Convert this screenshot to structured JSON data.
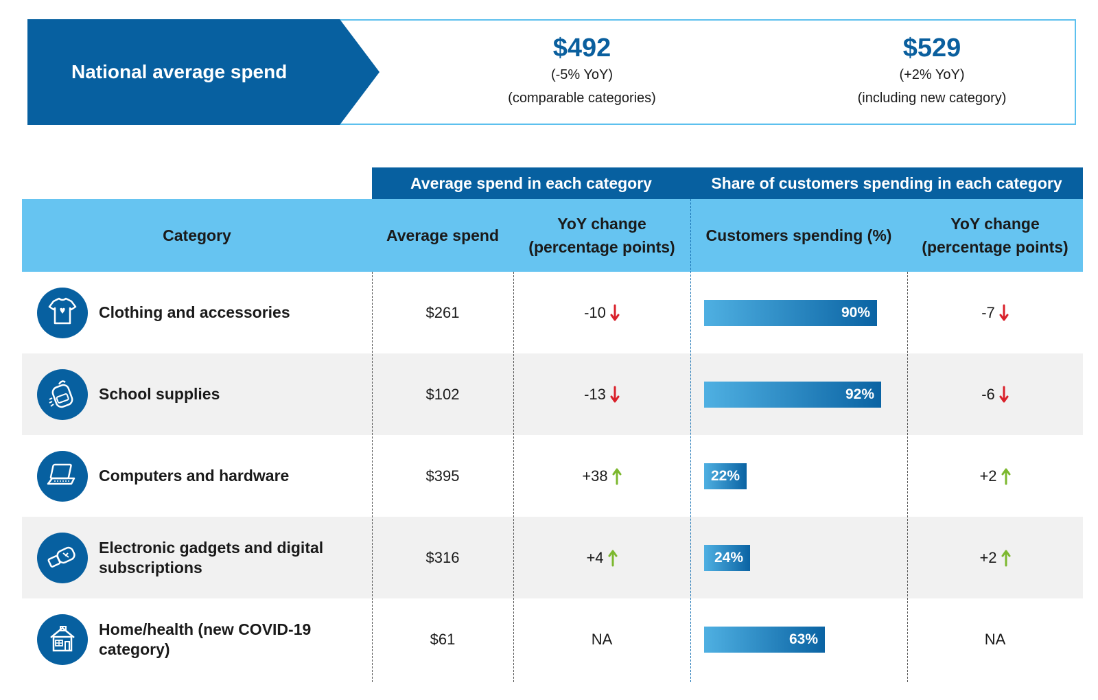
{
  "banner": {
    "title": "National average spend",
    "stats": [
      {
        "value": "$492",
        "line1": "(-5% YoY)",
        "line2": "(comparable categories)"
      },
      {
        "value": "$529",
        "line1": "(+2% YoY)",
        "line2": "(including new category)"
      }
    ]
  },
  "headers": {
    "group_avg": "Average spend in each category",
    "group_share": "Share of customers spending in each category",
    "category": "Category",
    "avg_spend": "Average spend",
    "yoy_avg": "YoY change\n(percentage points)",
    "customers": "Customers spending (%)",
    "yoy_share": "YoY change\n(percentage points)"
  },
  "colors": {
    "dark_blue": "#0760a0",
    "light_blue": "#66c4f1",
    "down": "#d9202a",
    "up": "#7cb82f"
  },
  "chart_data": {
    "type": "table",
    "title": "National average spend",
    "columns": [
      "Category",
      "Average spend",
      "YoY change (percentage points)",
      "Customers spending (%)",
      "YoY change (percentage points)"
    ],
    "rows": [
      {
        "icon": "t-shirt-icon",
        "category": "Clothing and accessories",
        "avg_spend": "$261",
        "avg_yoy": "-10",
        "avg_dir": "down",
        "customers_pct": 90,
        "customers_label": "90%",
        "share_yoy": "-7",
        "share_dir": "down"
      },
      {
        "icon": "backpack-icon",
        "category": "School supplies",
        "avg_spend": "$102",
        "avg_yoy": "-13",
        "avg_dir": "down",
        "customers_pct": 92,
        "customers_label": "92%",
        "share_yoy": "-6",
        "share_dir": "down"
      },
      {
        "icon": "laptop-icon",
        "category": "Computers and hardware",
        "avg_spend": "$395",
        "avg_yoy": "+38",
        "avg_dir": "up",
        "customers_pct": 22,
        "customers_label": "22%",
        "share_yoy": "+2",
        "share_dir": "up"
      },
      {
        "icon": "usb-drive-icon",
        "category": "Electronic gadgets and digital subscriptions",
        "avg_spend": "$316",
        "avg_yoy": "+4",
        "avg_dir": "up",
        "customers_pct": 24,
        "customers_label": "24%",
        "share_yoy": "+2",
        "share_dir": "up"
      },
      {
        "icon": "house-icon",
        "category": "Home/health (new COVID-19 category)",
        "avg_spend": "$61",
        "avg_yoy": "NA",
        "avg_dir": "none",
        "customers_pct": 63,
        "customers_label": "63%",
        "share_yoy": "NA",
        "share_dir": "none"
      }
    ]
  }
}
